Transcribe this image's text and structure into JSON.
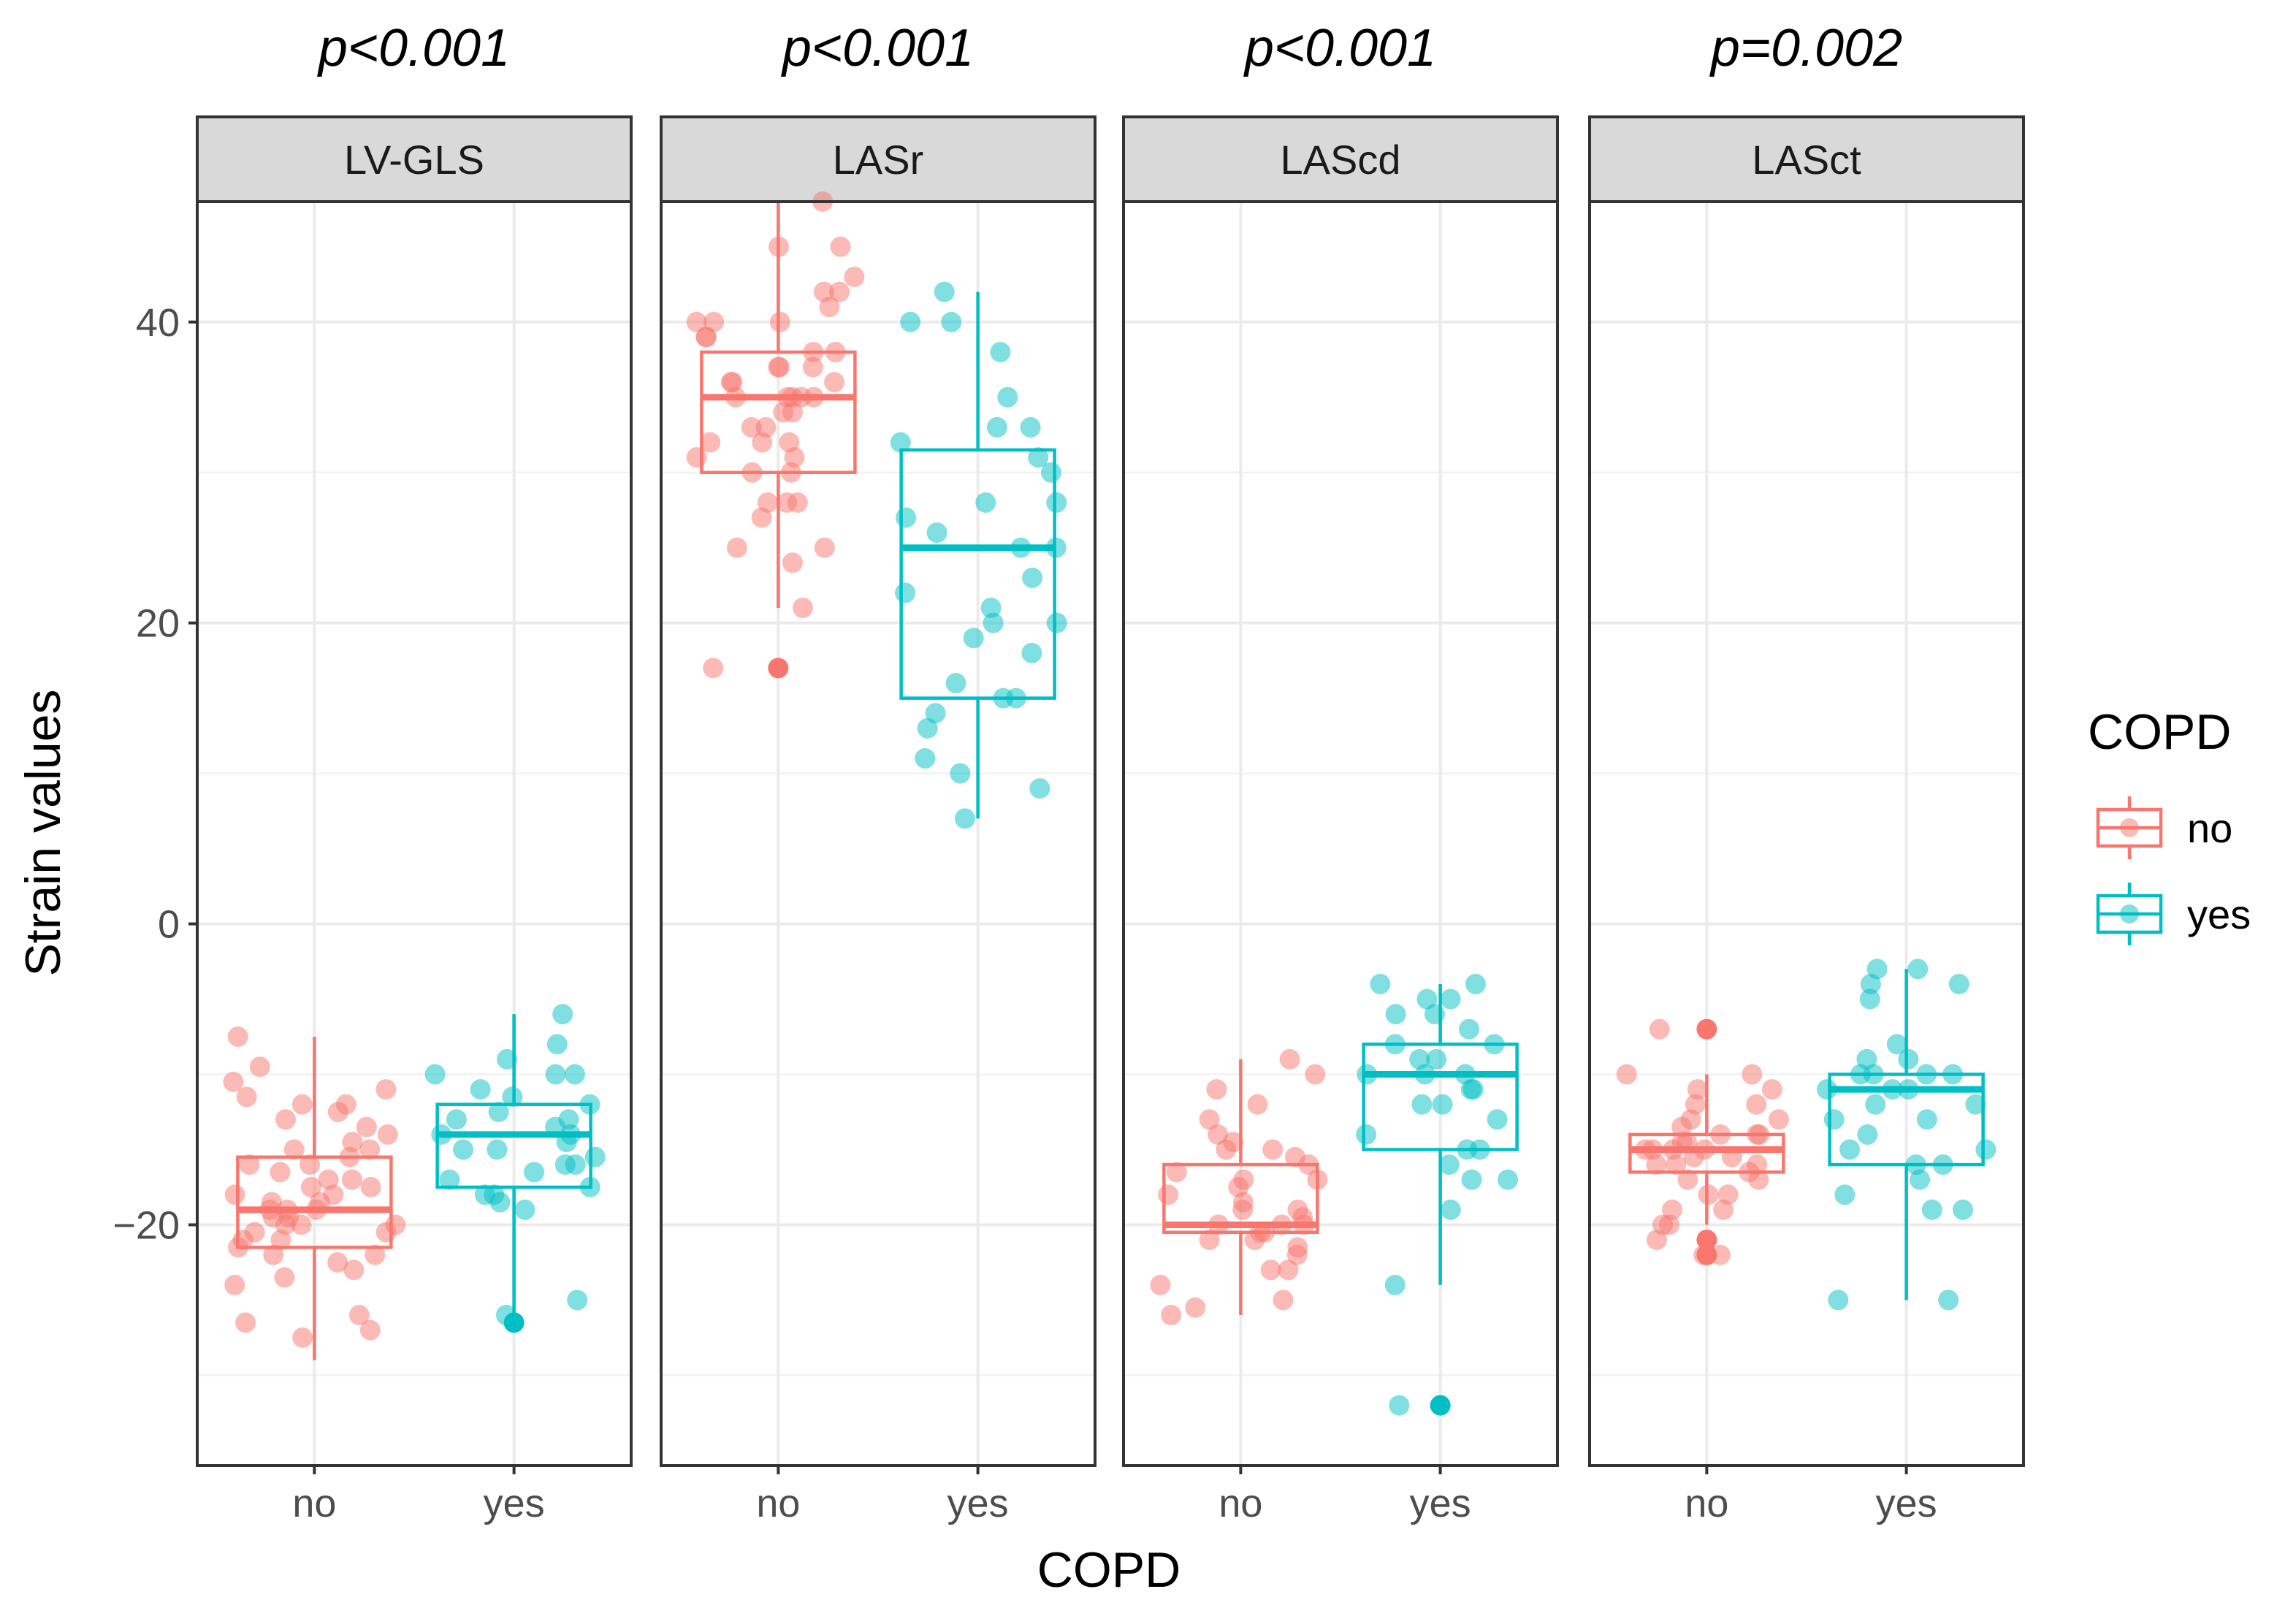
{
  "chart_data": {
    "type": "boxplot",
    "ylabel": "Strain values",
    "xlabel": "COPD",
    "ylim": [
      -36,
      48
    ],
    "yticks": [
      -20,
      0,
      20,
      40
    ],
    "categories": [
      "no",
      "yes"
    ],
    "legend": {
      "title": "COPD",
      "placement": "right",
      "entries": [
        {
          "label": "no",
          "color": "#F8766D"
        },
        {
          "label": "yes",
          "color": "#00BFC4"
        }
      ]
    },
    "panels": [
      {
        "name": "LV-GLS",
        "pvalue": "p<0.001",
        "groups": [
          {
            "label": "no",
            "color": "#F8766D",
            "box": {
              "q1": -21.5,
              "median": -19,
              "q3": -15.5,
              "min": -29,
              "max": -7.5
            },
            "points": [
              -27.5,
              -27,
              -26.5,
              -26,
              -24,
              -23.5,
              -23,
              -22.5,
              -22,
              -22,
              -21.5,
              -21,
              -21,
              -20.5,
              -20.5,
              -20,
              -20,
              -20,
              -19.5,
              -19.5,
              -19,
              -19,
              -19,
              -18.5,
              -18.5,
              -18,
              -18,
              -17.5,
              -17.5,
              -17,
              -17,
              -16.5,
              -16,
              -16,
              -15.5,
              -15,
              -15,
              -14.5,
              -14,
              -13.5,
              -13,
              -12.5,
              -12,
              -12,
              -11.5,
              -11,
              -10.5,
              -9.5,
              -7.5
            ],
            "outliers": []
          },
          {
            "label": "yes",
            "color": "#00BFC4",
            "box": {
              "q1": -17.5,
              "median": -14,
              "q3": -12,
              "min": -26.5,
              "max": -6
            },
            "points": [
              -26,
              -25,
              -19,
              -18.5,
              -18,
              -18,
              -17.5,
              -17,
              -16.5,
              -16,
              -16,
              -15.5,
              -15,
              -15,
              -14.5,
              -14,
              -14,
              -13.5,
              -13,
              -13,
              -12.5,
              -12,
              -11.5,
              -11,
              -10,
              -10,
              -10,
              -9,
              -8,
              -6
            ],
            "outliers": [
              -26.5
            ]
          }
        ]
      },
      {
        "name": "LASr",
        "pvalue": "p<0.001",
        "groups": [
          {
            "label": "no",
            "color": "#F8766D",
            "box": {
              "q1": 30,
              "median": 35,
              "q3": 38,
              "min": 21,
              "max": 48
            },
            "points": [
              17,
              21,
              24,
              25,
              25,
              27,
              28,
              28,
              28,
              30,
              30,
              31,
              31,
              32,
              32,
              32,
              33,
              33,
              34,
              34,
              35,
              35,
              35,
              35,
              35,
              36,
              36,
              36,
              37,
              37,
              37,
              38,
              38,
              39,
              39,
              40,
              40,
              40,
              41,
              42,
              42,
              43,
              45,
              45,
              48
            ],
            "outliers": [
              17
            ]
          },
          {
            "label": "yes",
            "color": "#00BFC4",
            "box": {
              "q1": 15,
              "median": 25,
              "q3": 31.5,
              "min": 7,
              "max": 42
            },
            "points": [
              7,
              9,
              10,
              11,
              13,
              14,
              15,
              15,
              16,
              18,
              19,
              20,
              20,
              21,
              22,
              23,
              25,
              25,
              26,
              27,
              28,
              28,
              30,
              31,
              32,
              33,
              33,
              35,
              38,
              40,
              40,
              42
            ],
            "outliers": []
          }
        ]
      },
      {
        "name": "LAScd",
        "pvalue": "p<0.001",
        "groups": [
          {
            "label": "no",
            "color": "#F8766D",
            "box": {
              "q1": -20.5,
              "median": -20,
              "q3": -16,
              "min": -26,
              "max": -9
            },
            "points": [
              -26,
              -25.5,
              -25,
              -24,
              -23,
              -23,
              -22,
              -21.5,
              -21,
              -21,
              -20.5,
              -20.5,
              -20,
              -20,
              -20,
              -19.5,
              -19,
              -19,
              -18.5,
              -18,
              -17.5,
              -17,
              -17,
              -16.5,
              -16,
              -15.5,
              -15,
              -15,
              -14.5,
              -14,
              -13,
              -12,
              -11,
              -10,
              -9
            ],
            "outliers": []
          },
          {
            "label": "yes",
            "color": "#00BFC4",
            "box": {
              "q1": -15,
              "median": -10,
              "q3": -8,
              "min": -24,
              "max": -4
            },
            "points": [
              -32,
              -24,
              -19,
              -17,
              -17,
              -16,
              -15,
              -15,
              -14,
              -13,
              -12,
              -12,
              -11,
              -11,
              -10,
              -10,
              -10,
              -9,
              -9,
              -8,
              -8,
              -7,
              -6,
              -6,
              -5,
              -5,
              -4,
              -4
            ],
            "outliers": [
              -32
            ]
          }
        ]
      },
      {
        "name": "LASct",
        "pvalue": "p=0.002",
        "groups": [
          {
            "label": "no",
            "color": "#F8766D",
            "box": {
              "q1": -16.5,
              "median": -15,
              "q3": -14,
              "min": -20,
              "max": -10
            },
            "points": [
              -22,
              -22,
              -21,
              -20,
              -20,
              -19,
              -19,
              -18,
              -18,
              -17,
              -17,
              -16.5,
              -16,
              -16,
              -16,
              -15.5,
              -15.5,
              -15,
              -15,
              -15,
              -15,
              -14.5,
              -14.5,
              -14,
              -14,
              -14,
              -13.5,
              -13,
              -13,
              -12,
              -12,
              -11,
              -11,
              -10,
              -10,
              -7
            ],
            "outliers": [
              -22,
              -21,
              -7
            ]
          },
          {
            "label": "yes",
            "color": "#00BFC4",
            "box": {
              "q1": -16,
              "median": -11,
              "q3": -10,
              "min": -25,
              "max": -3
            },
            "points": [
              -25,
              -25,
              -19,
              -19,
              -18,
              -17,
              -16,
              -16,
              -15,
              -15,
              -14,
              -13,
              -13,
              -12,
              -12,
              -11,
              -11,
              -11,
              -10,
              -10,
              -10,
              -10,
              -9,
              -9,
              -8,
              -5,
              -4,
              -4,
              -3,
              -3
            ],
            "outliers": []
          }
        ]
      }
    ]
  }
}
